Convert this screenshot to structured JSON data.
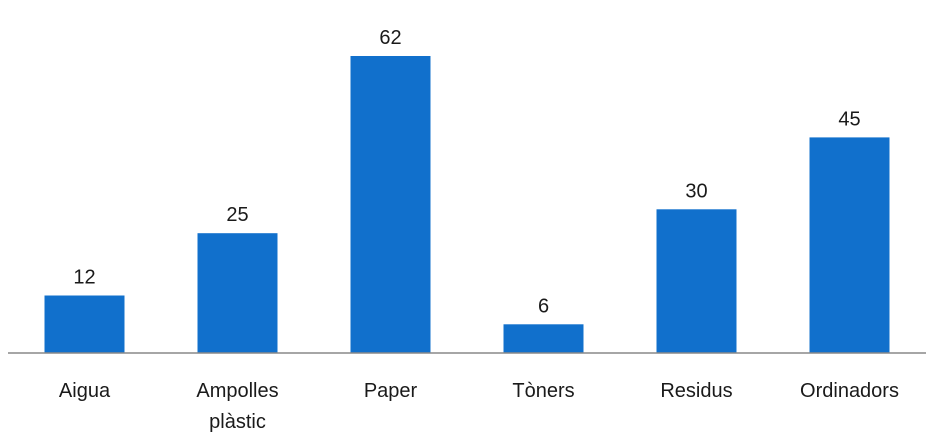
{
  "chart_data": {
    "type": "bar",
    "categories": [
      [
        "Aigua"
      ],
      [
        "Ampolles",
        "plàstic"
      ],
      [
        "Paper"
      ],
      [
        "Tòners"
      ],
      [
        "Residus"
      ],
      [
        "Ordinadors"
      ]
    ],
    "values": [
      12,
      25,
      62,
      6,
      30,
      45
    ],
    "value_labels": [
      "12",
      "25",
      "62",
      "6",
      "30",
      "45"
    ],
    "title": "",
    "xlabel": "",
    "ylabel": "",
    "ylim": [
      0,
      62
    ],
    "grid": false,
    "legend": "none",
    "colors": {
      "bar": "#1170CC",
      "axis": "#898989",
      "text": "#1a1a1a"
    }
  }
}
